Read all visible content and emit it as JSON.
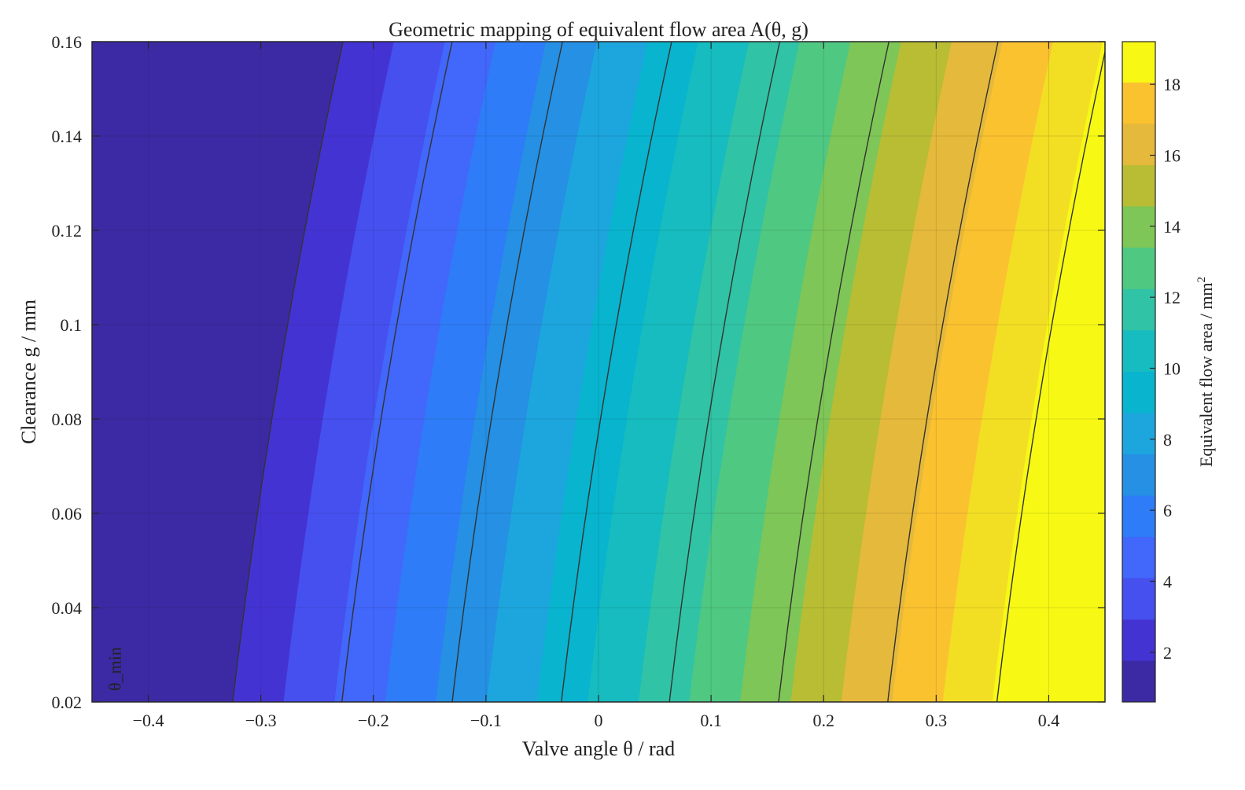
{
  "chart_data": {
    "type": "heatmap",
    "subtype": "filled-contour",
    "title": "Geometric mapping of equivalent flow area A(θ, g)",
    "xlabel": "Valve angle θ / rad",
    "ylabel": "Clearance g / mm",
    "colorbar_label": "Equivalent flow area / mm",
    "colorbar_label_superscript": "2",
    "xlim": [
      -0.45,
      0.45
    ],
    "ylim": [
      0.02,
      0.16
    ],
    "clim": [
      0.6,
      19.2
    ],
    "x_ticks": [
      -0.4,
      -0.3,
      -0.2,
      -0.1,
      0,
      0.1,
      0.2,
      0.3,
      0.4
    ],
    "x_tick_labels": [
      "−0.4",
      "−0.3",
      "−0.2",
      "−0.1",
      "0",
      "0.1",
      "0.2",
      "0.3",
      "0.4"
    ],
    "y_ticks": [
      0.02,
      0.04,
      0.06,
      0.08,
      0.1,
      0.12,
      0.14,
      0.16
    ],
    "y_tick_labels": [
      "0.02",
      "0.04",
      "0.06",
      "0.08",
      "0.1",
      "0.12",
      "0.14",
      "0.16"
    ],
    "colorbar_ticks": [
      2,
      4,
      6,
      8,
      10,
      12,
      14,
      16,
      18
    ],
    "colorbar_tick_labels": [
      "2",
      "4",
      "6",
      "8",
      "10",
      "12",
      "14",
      "16",
      "18"
    ],
    "fill_levels": [
      0.6,
      1.77,
      2.93,
      4.1,
      5.26,
      6.42,
      7.59,
      8.75,
      9.91,
      11.08,
      12.24,
      13.41,
      14.57,
      15.73,
      16.9,
      18.06,
      19.2
    ],
    "fill_colors": [
      "#3c2aa4",
      "#4433d3",
      "#4650ef",
      "#4267fb",
      "#2e7cf7",
      "#2590e4",
      "#1da6dd",
      "#08b4ce",
      "#16bcbf",
      "#31c3a5",
      "#4fc882",
      "#7ec657",
      "#b8bd34",
      "#e5b93b",
      "#fbc230",
      "#f2df24",
      "#f7f914"
    ],
    "contour_lines_at_bottom_x": [
      -0.325,
      -0.228,
      -0.13,
      -0.033,
      0.063,
      0.16,
      0.257,
      0.354
    ],
    "grid": true,
    "annotation": "θ_min",
    "annotation_x": -0.43,
    "annotation_y": 0.03
  }
}
